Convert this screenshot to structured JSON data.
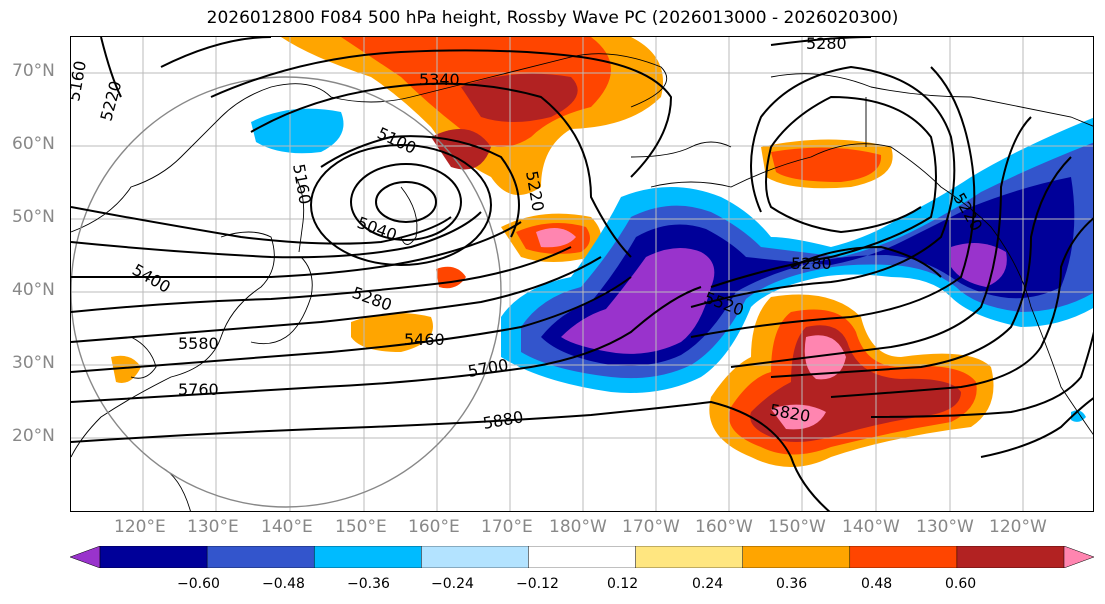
{
  "title": "2026012800 F084 500 hPa height, Rossby Wave PC (2026013000 - 2026020300)",
  "lat_labels": [
    "70°N",
    "60°N",
    "50°N",
    "40°N",
    "30°N",
    "20°N"
  ],
  "lon_labels": [
    "120°E",
    "130°E",
    "140°E",
    "150°E",
    "160°E",
    "170°E",
    "180°W",
    "170°W",
    "160°W",
    "150°W",
    "140°W",
    "130°W",
    "120°W"
  ],
  "contour_labels": [
    "5160",
    "5220",
    "5340",
    "5280",
    "5100",
    "5160",
    "5220",
    "5040",
    "5400",
    "5280",
    "5460",
    "5580",
    "5760",
    "5700",
    "5880",
    "5520",
    "5820",
    "5280",
    "5220"
  ],
  "colorbar": {
    "colors": [
      "#9933cc",
      "#000099",
      "#3355cc",
      "#00bbff",
      "#b3e3ff",
      "#ffffff",
      "#ffe680",
      "#ffa500",
      "#ff4500",
      "#b22222",
      "#ff85b0"
    ],
    "ticks": [
      "−0.60",
      "−0.48",
      "−0.36",
      "−0.24",
      "−0.12",
      "0.12",
      "0.24",
      "0.36",
      "0.48",
      "0.60"
    ]
  }
}
